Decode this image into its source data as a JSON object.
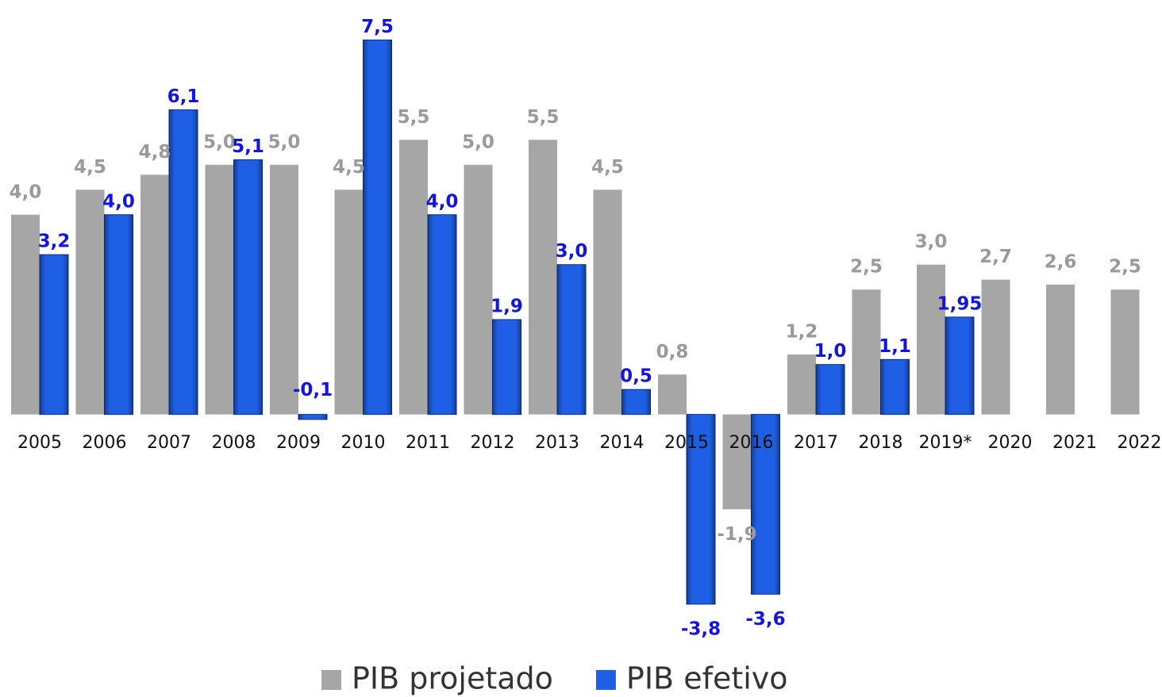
{
  "chart_data": {
    "type": "bar",
    "categories": [
      "2005",
      "2006",
      "2007",
      "2008",
      "2009",
      "2010",
      "2011",
      "2012",
      "2013",
      "2014",
      "2015",
      "2016",
      "2017",
      "2018",
      "2019*",
      "2020",
      "2021",
      "2022"
    ],
    "series": [
      {
        "name": "PIB projetado",
        "color": "#a6a6a6",
        "label_color": "#9a9a9a",
        "values": [
          4.0,
          4.5,
          4.8,
          5.0,
          5.0,
          4.5,
          5.5,
          5.0,
          5.5,
          4.5,
          0.8,
          -1.9,
          1.2,
          2.5,
          3.0,
          2.7,
          2.6,
          2.5
        ],
        "value_labels": [
          "4,0",
          "4,5",
          "4,8",
          "5,0",
          "5,0",
          "4,5",
          "5,5",
          "5,0",
          "5,5",
          "4,5",
          "0,8",
          "-1,9",
          "1,2",
          "2,5",
          "3,0",
          "2,7",
          "2,6",
          "2,5"
        ]
      },
      {
        "name": "PIB efetivo",
        "color": "#1f5fe6",
        "label_color": "#1414e0",
        "values": [
          3.2,
          4.0,
          6.1,
          5.1,
          -0.1,
          7.5,
          4.0,
          1.9,
          3.0,
          0.5,
          -3.8,
          -3.6,
          1.0,
          1.1,
          1.95,
          null,
          null,
          null
        ],
        "value_labels": [
          "3,2",
          "4,0",
          "6,1",
          "5,1",
          "-0,1",
          "7,5",
          "4,0",
          "1,9",
          "3,0",
          "0,5",
          "-3,8",
          "-3,6",
          "1,0",
          "1,1",
          "1,95",
          null,
          null,
          null
        ]
      }
    ],
    "ylim": [
      -4.5,
      8.3
    ],
    "legend": "bottom"
  }
}
